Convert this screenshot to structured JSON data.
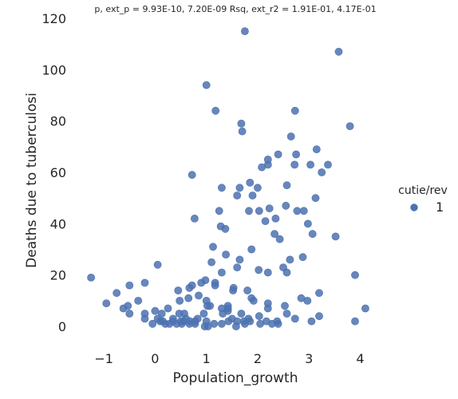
{
  "chart_data": {
    "type": "scatter",
    "title": "p, ext_p = 9.93E-10, 7.20E-09 Rsq, ext_r2 = 1.91E-01, 4.17E-01",
    "xlabel": "Population_growth",
    "ylabel": "Deaths due to tuberculosi",
    "xlim": [
      -1.5,
      4.6
    ],
    "ylim": [
      -9,
      120
    ],
    "x_ticks": [
      -1,
      0,
      1,
      2,
      3,
      4
    ],
    "x_tick_labels": [
      "−1",
      "0",
      "1",
      "2",
      "3",
      "4"
    ],
    "y_ticks": [
      0,
      20,
      40,
      60,
      80,
      100,
      120
    ],
    "y_tick_labels": [
      "0",
      "20",
      "40",
      "60",
      "80",
      "100",
      "120"
    ],
    "grid": false,
    "legend": {
      "title": "cutie/rev",
      "placement": "right",
      "entries": [
        "1"
      ]
    },
    "marker_color": "#4c72b0",
    "series": [
      {
        "name": "1",
        "points": [
          [
            1.75,
            115
          ],
          [
            3.58,
            107
          ],
          [
            1.0,
            94
          ],
          [
            1.18,
            84
          ],
          [
            2.73,
            84
          ],
          [
            1.68,
            79
          ],
          [
            3.8,
            78
          ],
          [
            1.7,
            76
          ],
          [
            2.65,
            74
          ],
          [
            3.15,
            69
          ],
          [
            2.4,
            67
          ],
          [
            2.75,
            67
          ],
          [
            2.2,
            65
          ],
          [
            2.2,
            63
          ],
          [
            2.72,
            63
          ],
          [
            3.03,
            63
          ],
          [
            3.37,
            63
          ],
          [
            2.08,
            62
          ],
          [
            3.25,
            60
          ],
          [
            0.72,
            59
          ],
          [
            1.85,
            56
          ],
          [
            2.57,
            55
          ],
          [
            1.3,
            54
          ],
          [
            1.65,
            54
          ],
          [
            2.0,
            54
          ],
          [
            1.6,
            51
          ],
          [
            1.9,
            51
          ],
          [
            3.13,
            50
          ],
          [
            2.55,
            47
          ],
          [
            1.25,
            45
          ],
          [
            1.83,
            45
          ],
          [
            2.03,
            45
          ],
          [
            2.23,
            46
          ],
          [
            2.77,
            45
          ],
          [
            2.9,
            45
          ],
          [
            0.77,
            42
          ],
          [
            2.15,
            41
          ],
          [
            2.35,
            42
          ],
          [
            2.98,
            40
          ],
          [
            1.28,
            39
          ],
          [
            1.37,
            38
          ],
          [
            2.33,
            36
          ],
          [
            3.07,
            36
          ],
          [
            2.43,
            34
          ],
          [
            3.52,
            35
          ],
          [
            1.13,
            31
          ],
          [
            1.88,
            30
          ],
          [
            1.38,
            28
          ],
          [
            2.88,
            27
          ],
          [
            1.65,
            26
          ],
          [
            2.63,
            26
          ],
          [
            1.1,
            25
          ],
          [
            0.05,
            24
          ],
          [
            2.5,
            23
          ],
          [
            1.6,
            23
          ],
          [
            2.02,
            22
          ],
          [
            2.57,
            21
          ],
          [
            2.2,
            21
          ],
          [
            1.3,
            21
          ],
          [
            3.9,
            20
          ],
          [
            -1.25,
            19
          ],
          [
            0.9,
            17
          ],
          [
            0.98,
            18
          ],
          [
            1.17,
            17
          ],
          [
            1.17,
            16
          ],
          [
            -0.2,
            17
          ],
          [
            -0.5,
            16
          ],
          [
            0.72,
            16
          ],
          [
            0.67,
            15
          ],
          [
            1.53,
            15
          ],
          [
            1.52,
            14
          ],
          [
            1.8,
            14
          ],
          [
            0.45,
            14
          ],
          [
            -0.75,
            13
          ],
          [
            3.2,
            13
          ],
          [
            0.85,
            12
          ],
          [
            1.88,
            11
          ],
          [
            2.85,
            11
          ],
          [
            0.65,
            11
          ],
          [
            1.92,
            10
          ],
          [
            2.97,
            10
          ],
          [
            -0.33,
            10
          ],
          [
            0.48,
            10
          ],
          [
            1.0,
            10
          ],
          [
            -0.95,
            9
          ],
          [
            2.2,
            9
          ],
          [
            2.53,
            8
          ],
          [
            1.02,
            8
          ],
          [
            1.07,
            8
          ],
          [
            1.42,
            8
          ],
          [
            1.42,
            7
          ],
          [
            1.42,
            6
          ],
          [
            1.3,
            7
          ],
          [
            0.25,
            7
          ],
          [
            2.2,
            7
          ],
          [
            -0.53,
            8
          ],
          [
            -0.62,
            7
          ],
          [
            -0.5,
            5
          ],
          [
            4.1,
            7
          ],
          [
            -0.2,
            5
          ],
          [
            0.0,
            6
          ],
          [
            0.13,
            5
          ],
          [
            0.47,
            5
          ],
          [
            0.57,
            5
          ],
          [
            0.95,
            5
          ],
          [
            1.32,
            5
          ],
          [
            1.68,
            5
          ],
          [
            2.57,
            5
          ],
          [
            3.2,
            4
          ],
          [
            2.03,
            4
          ],
          [
            -0.2,
            3
          ],
          [
            0.35,
            3
          ],
          [
            0.6,
            3
          ],
          [
            0.83,
            3
          ],
          [
            1.5,
            3
          ],
          [
            1.82,
            3
          ],
          [
            2.73,
            3
          ],
          [
            0.05,
            3
          ],
          [
            0.15,
            2
          ],
          [
            0.55,
            2
          ],
          [
            0.78,
            2
          ],
          [
            1.0,
            2
          ],
          [
            1.6,
            2
          ],
          [
            1.85,
            2
          ],
          [
            2.38,
            2
          ],
          [
            3.05,
            2
          ],
          [
            3.9,
            2
          ],
          [
            -0.05,
            1
          ],
          [
            0.2,
            1
          ],
          [
            0.28,
            1
          ],
          [
            0.42,
            1
          ],
          [
            0.52,
            1
          ],
          [
            0.67,
            1
          ],
          [
            0.78,
            1
          ],
          [
            1.15,
            1
          ],
          [
            1.3,
            1
          ],
          [
            1.75,
            1
          ],
          [
            2.05,
            1
          ],
          [
            2.28,
            1
          ],
          [
            2.4,
            1
          ],
          [
            0.97,
            0
          ],
          [
            1.03,
            0
          ],
          [
            1.58,
            0
          ],
          [
            0.1,
            2
          ],
          [
            0.35,
            2
          ],
          [
            0.5,
            2
          ],
          [
            0.68,
            2
          ],
          [
            1.43,
            2
          ],
          [
            1.73,
            2
          ],
          [
            2.17,
            2
          ]
        ]
      }
    ]
  }
}
